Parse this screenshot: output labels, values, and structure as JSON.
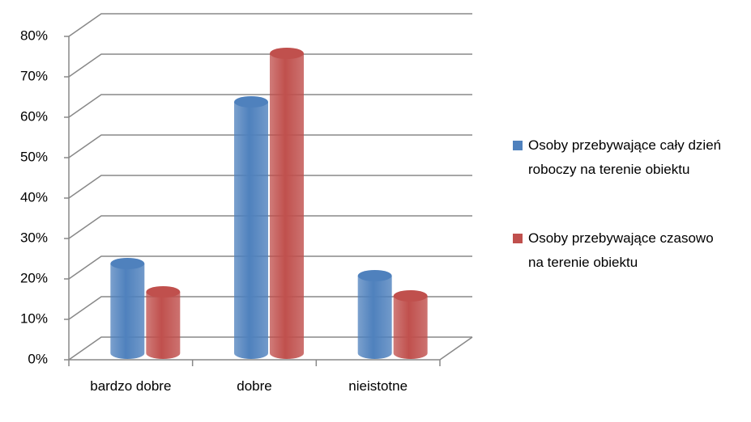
{
  "chart_data": {
    "type": "bar",
    "categories": [
      "bardzo dobre",
      "dobre",
      "nieistotne"
    ],
    "series": [
      {
        "name": "Osoby przebywające cały dzień roboczy na terenie obiektu",
        "color": "#4f81bd",
        "values": [
          21,
          61,
          18
        ]
      },
      {
        "name": "Osoby przebywające czasowo na terenie obiektu",
        "color": "#c0504d",
        "values": [
          14,
          73,
          13
        ]
      }
    ],
    "ylim": [
      0,
      80
    ],
    "yticks": [
      {
        "value": 0,
        "label": "0%"
      },
      {
        "value": 10,
        "label": "10%"
      },
      {
        "value": 20,
        "label": "20%"
      },
      {
        "value": 30,
        "label": "30%"
      },
      {
        "value": 40,
        "label": "40%"
      },
      {
        "value": 50,
        "label": "50%"
      },
      {
        "value": 60,
        "label": "60%"
      },
      {
        "value": 70,
        "label": "70%"
      },
      {
        "value": 80,
        "label": "80%"
      }
    ],
    "grid": true,
    "legend": "right"
  }
}
